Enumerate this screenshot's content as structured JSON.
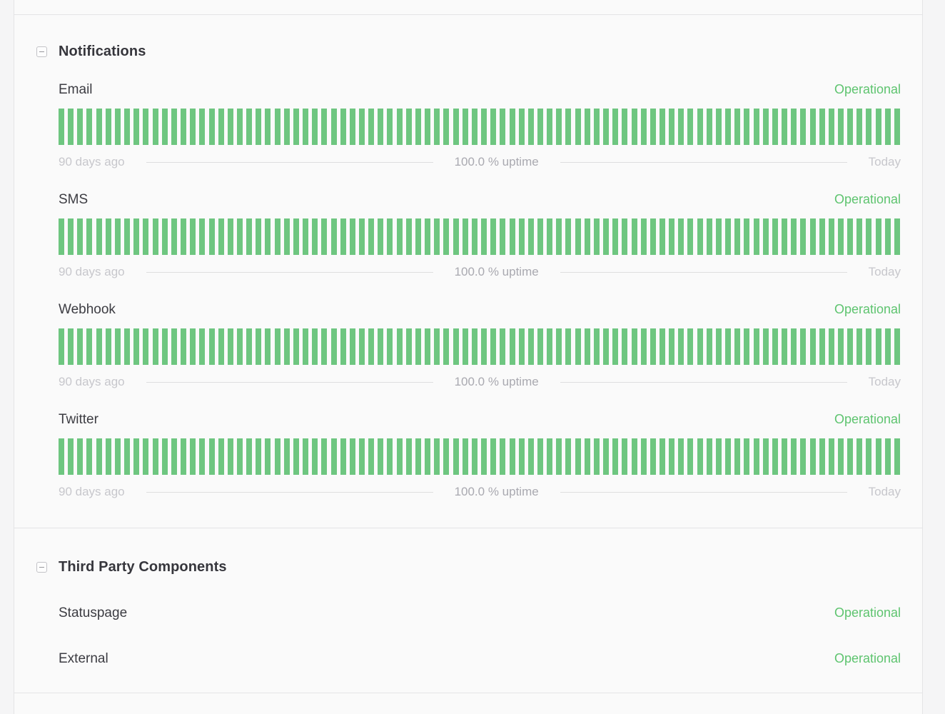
{
  "colors": {
    "operational_green": "#5ec46f",
    "bar_green": "#6ec680"
  },
  "sections": [
    {
      "title": "Notifications",
      "collapse_icon": "minus-square",
      "components": [
        {
          "name": "Email",
          "status": "Operational",
          "days": 90,
          "left_label": "90 days ago",
          "uptime_label": "100.0 % uptime",
          "right_label": "Today"
        },
        {
          "name": "SMS",
          "status": "Operational",
          "days": 90,
          "left_label": "90 days ago",
          "uptime_label": "100.0 % uptime",
          "right_label": "Today"
        },
        {
          "name": "Webhook",
          "status": "Operational",
          "days": 90,
          "left_label": "90 days ago",
          "uptime_label": "100.0 % uptime",
          "right_label": "Today"
        },
        {
          "name": "Twitter",
          "status": "Operational",
          "days": 90,
          "left_label": "90 days ago",
          "uptime_label": "100.0 % uptime",
          "right_label": "Today"
        }
      ]
    },
    {
      "title": "Third Party Components",
      "collapse_icon": "minus-square",
      "components": [
        {
          "name": "Statuspage",
          "status": "Operational"
        },
        {
          "name": "External",
          "status": "Operational"
        }
      ]
    }
  ]
}
